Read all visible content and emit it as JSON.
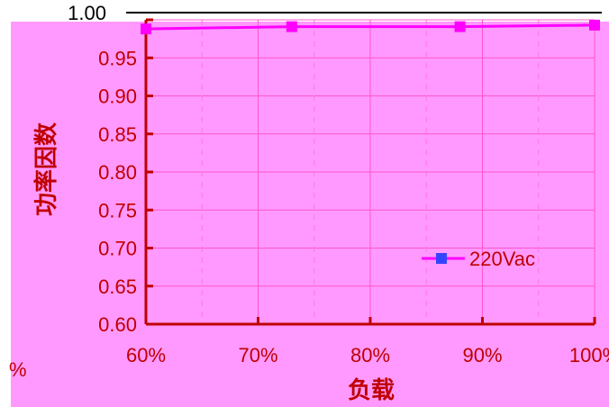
{
  "chart_data": {
    "type": "line",
    "title": "",
    "xlabel": "负载",
    "ylabel": "功率因数",
    "x_ticks": [
      "60%",
      "70%",
      "80%",
      "90%",
      "100%"
    ],
    "y_ticks": [
      "0.60",
      "0.65",
      "0.70",
      "0.75",
      "0.80",
      "0.85",
      "0.90",
      "0.95",
      "1.00"
    ],
    "xlim": [
      60,
      100
    ],
    "ylim": [
      0.6,
      1.0
    ],
    "grid": true,
    "legend_position": "right",
    "series": [
      {
        "name": "220Vac",
        "x": [
          60,
          73,
          88,
          100
        ],
        "values": [
          0.988,
          0.991,
          0.991,
          0.993
        ],
        "color": "#ff00ff",
        "marker_color": "#ff00ff"
      }
    ],
    "stray_label": "%"
  },
  "colors": {
    "background": "#ff99ff",
    "axis": "#c00000",
    "grid": "#ff66cc",
    "text": "#c00000"
  }
}
